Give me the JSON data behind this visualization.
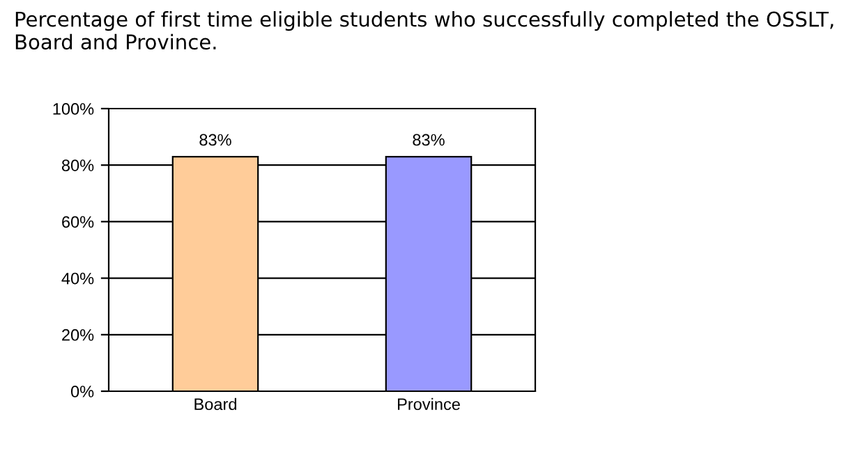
{
  "chart_data": {
    "type": "bar",
    "title": "Percentage of first time eligible students who successfully completed the OSSLT, Board and Province.",
    "categories": [
      "Board",
      "Province"
    ],
    "values": [
      83,
      83
    ],
    "colors": [
      "#ffcc99",
      "#9999ff"
    ],
    "value_labels": [
      "83%",
      "83%"
    ],
    "ylim": [
      0,
      100
    ],
    "yticks": [
      {
        "value": 0,
        "label": "0%"
      },
      {
        "value": 20,
        "label": "20%"
      },
      {
        "value": 40,
        "label": "40%"
      },
      {
        "value": 60,
        "label": "60%"
      },
      {
        "value": 80,
        "label": "80%"
      },
      {
        "value": 100,
        "label": "100%"
      }
    ],
    "grid": "y"
  }
}
